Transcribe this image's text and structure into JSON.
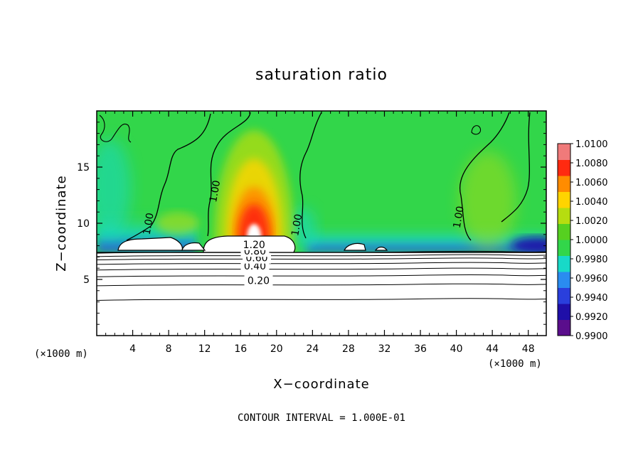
{
  "chart_data": {
    "type": "heatmap",
    "title": "saturation ratio",
    "xlabel": "X−coordinate",
    "ylabel": "Z−coordinate",
    "x_unit": "(×1000 m)",
    "z_unit": "(×1000 m)",
    "xlim": [
      0,
      50
    ],
    "ylim": [
      0,
      20
    ],
    "x_ticks": [
      4,
      8,
      12,
      16,
      20,
      24,
      28,
      32,
      36,
      40,
      44,
      48
    ],
    "y_ticks": [
      5,
      10,
      15
    ],
    "colorbar": {
      "min": 0.99,
      "max": 1.01,
      "tick_labels": [
        "1.0100",
        "1.0080",
        "1.0060",
        "1.0040",
        "1.0020",
        "1.0000",
        "0.9980",
        "0.9960",
        "0.9940",
        "0.9920",
        "0.9900"
      ],
      "colors": [
        "#5a0e8c",
        "#1f0fa8",
        "#2a3fdc",
        "#2a8cf0",
        "#18d9c8",
        "#32d64a",
        "#56d020",
        "#b6dd10",
        "#ffd400",
        "#ff8c00",
        "#ff2a10",
        "#f07a7a"
      ]
    },
    "contour_interval": "CONTOUR INTERVAL = 1.000E-01",
    "contour_labels": [
      {
        "text": "0.20",
        "x": 18,
        "z": 4.6
      },
      {
        "text": "0.40",
        "x": 17.6,
        "z": 5.9
      },
      {
        "text": "0.60",
        "x": 17.8,
        "z": 6.6
      },
      {
        "text": "0.80",
        "x": 17.6,
        "z": 7.2
      },
      {
        "text": "1.20",
        "x": 17.5,
        "z": 7.8
      },
      {
        "text": "1.00",
        "x": 13.5,
        "z": 12.8
      },
      {
        "text": "1.00",
        "x": 6.1,
        "z": 9.9
      },
      {
        "text": "1.00",
        "x": 22.6,
        "z": 9.8
      },
      {
        "text": "1.00",
        "x": 40.6,
        "z": 10.5
      }
    ],
    "stable_layer_contours_z": [
      3.2,
      4.5,
      5.3,
      5.9,
      6.4,
      6.8,
      7.1,
      7.4
    ],
    "cloud_base_z": 7.4,
    "saturation_plume": {
      "x": 17.5,
      "z_base": 8.8,
      "peak": 1.0095
    }
  }
}
